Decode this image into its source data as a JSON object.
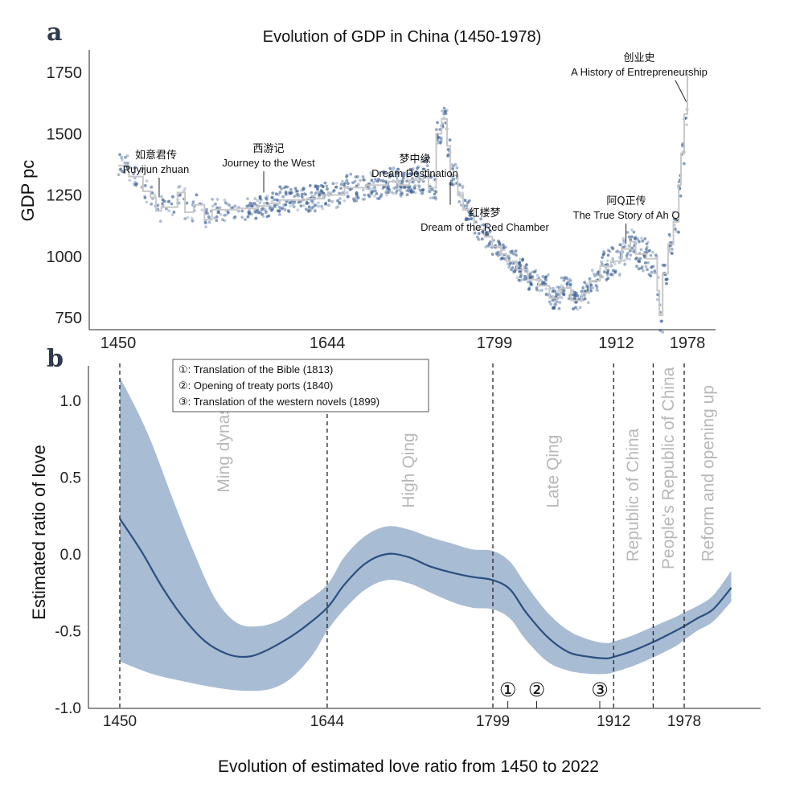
{
  "panel_a_label": "a",
  "panel_b_label": "b",
  "caption": "Evolution of estimated love ratio from 1450 to 2022",
  "colors": {
    "points": "#3a5f93",
    "step": "#c8c8c8",
    "band": "#a8bcd3",
    "line": "#2b4f80",
    "era": "#b8b8b8"
  },
  "chart_data": [
    {
      "type": "scatter",
      "title": "Evolution of GDP in China (1450-1978)",
      "ylabel": "GDP pc",
      "xlabel": "",
      "xlim": [
        1440,
        2005
      ],
      "ylim": [
        710,
        1810
      ],
      "xticks": [
        "1450",
        "1644",
        "1799",
        "1912",
        "1978"
      ],
      "yticks": [
        "750",
        "1000",
        "1250",
        "1500",
        "1750"
      ],
      "step_series": [
        [
          1450,
          1370
        ],
        [
          1460,
          1325
        ],
        [
          1473,
          1265
        ],
        [
          1480,
          1240
        ],
        [
          1485,
          1185
        ],
        [
          1490,
          1200
        ],
        [
          1505,
          1260
        ],
        [
          1512,
          1180
        ],
        [
          1520,
          1210
        ],
        [
          1530,
          1150
        ],
        [
          1537,
          1190
        ],
        [
          1560,
          1195
        ],
        [
          1580,
          1205
        ],
        [
          1590,
          1215
        ],
        [
          1600,
          1230
        ],
        [
          1625,
          1235
        ],
        [
          1640,
          1250
        ],
        [
          1660,
          1280
        ],
        [
          1680,
          1290
        ],
        [
          1700,
          1305
        ],
        [
          1710,
          1290
        ],
        [
          1720,
          1310
        ],
        [
          1733,
          1350
        ],
        [
          1738,
          1280
        ],
        [
          1745,
          1500
        ],
        [
          1750,
          1560
        ],
        [
          1755,
          1450
        ],
        [
          1758,
          1330
        ],
        [
          1765,
          1250
        ],
        [
          1770,
          1190
        ],
        [
          1780,
          1110
        ],
        [
          1790,
          1080
        ],
        [
          1797,
          1040
        ],
        [
          1805,
          1010
        ],
        [
          1810,
          980
        ],
        [
          1820,
          945
        ],
        [
          1830,
          905
        ],
        [
          1840,
          880
        ],
        [
          1850,
          830
        ],
        [
          1860,
          870
        ],
        [
          1870,
          820
        ],
        [
          1880,
          850
        ],
        [
          1887,
          900
        ],
        [
          1897,
          960
        ],
        [
          1907,
          980
        ],
        [
          1917,
          1030
        ],
        [
          1925,
          1060
        ],
        [
          1930,
          1010
        ],
        [
          1940,
          990
        ],
        [
          1950,
          860
        ],
        [
          1952,
          760
        ],
        [
          1955,
          930
        ],
        [
          1960,
          1050
        ],
        [
          1965,
          1140
        ],
        [
          1970,
          1290
        ],
        [
          1972,
          1420
        ],
        [
          1975,
          1580
        ],
        [
          1978,
          1750
        ]
      ],
      "annotations": [
        {
          "cn": "如意君传",
          "en": "Ruyijun zhuan",
          "year": 1488,
          "gdp": 1240
        },
        {
          "cn": "西游记",
          "en": "Journey to the West",
          "year": 1585,
          "gdp": 1260
        },
        {
          "cn": "梦中缘",
          "en": "Dream Destination",
          "year": 1758,
          "gdp": 1210
        },
        {
          "cn": "红楼梦",
          "en": "Dream of the Red Chamber",
          "year": 1791,
          "gdp": 1100
        },
        {
          "cn": "阿Q正传",
          "en": "The True Story of Ah Q",
          "year": 1921,
          "gdp": 1050
        },
        {
          "cn": "创业史",
          "en": "A History of Entrepreneurship",
          "year": 1977,
          "gdp": 1630
        }
      ]
    },
    {
      "type": "line",
      "title": "",
      "ylabel": "Estimated ratio of love",
      "xlabel": "Evolution of estimated love ratio from 1450 to 2022",
      "xlim": [
        1420,
        2040
      ],
      "ylim": [
        -1.0,
        1.35
      ],
      "xticks": [
        "1450",
        "1644",
        "1799",
        "1912",
        "1978"
      ],
      "yticks": [
        "-1.0",
        "-0.5",
        "0.0",
        "0.5",
        "1.0"
      ],
      "mean_series": [
        [
          1450,
          0.23
        ],
        [
          1470,
          0.02
        ],
        [
          1490,
          -0.22
        ],
        [
          1510,
          -0.42
        ],
        [
          1530,
          -0.57
        ],
        [
          1550,
          -0.65
        ],
        [
          1566,
          -0.67
        ],
        [
          1580,
          -0.65
        ],
        [
          1600,
          -0.58
        ],
        [
          1620,
          -0.49
        ],
        [
          1644,
          -0.35
        ],
        [
          1660,
          -0.2
        ],
        [
          1680,
          -0.06
        ],
        [
          1700,
          0.0
        ],
        [
          1720,
          -0.02
        ],
        [
          1740,
          -0.08
        ],
        [
          1760,
          -0.12
        ],
        [
          1780,
          -0.15
        ],
        [
          1799,
          -0.17
        ],
        [
          1815,
          -0.23
        ],
        [
          1830,
          -0.38
        ],
        [
          1850,
          -0.54
        ],
        [
          1870,
          -0.64
        ],
        [
          1890,
          -0.67
        ],
        [
          1905,
          -0.68
        ],
        [
          1912,
          -0.67
        ],
        [
          1930,
          -0.63
        ],
        [
          1950,
          -0.57
        ],
        [
          1970,
          -0.5
        ],
        [
          1978,
          -0.47
        ],
        [
          1990,
          -0.42
        ],
        [
          2005,
          -0.36
        ],
        [
          2022,
          -0.22
        ]
      ],
      "upper_series": [
        [
          1450,
          1.15
        ],
        [
          1465,
          0.95
        ],
        [
          1480,
          0.72
        ],
        [
          1500,
          0.35
        ],
        [
          1520,
          0.0
        ],
        [
          1540,
          -0.3
        ],
        [
          1560,
          -0.45
        ],
        [
          1580,
          -0.47
        ],
        [
          1600,
          -0.43
        ],
        [
          1620,
          -0.33
        ],
        [
          1644,
          -0.2
        ],
        [
          1660,
          -0.02
        ],
        [
          1680,
          0.12
        ],
        [
          1700,
          0.18
        ],
        [
          1720,
          0.16
        ],
        [
          1740,
          0.11
        ],
        [
          1760,
          0.07
        ],
        [
          1780,
          0.03
        ],
        [
          1799,
          0.02
        ],
        [
          1815,
          -0.05
        ],
        [
          1830,
          -0.2
        ],
        [
          1850,
          -0.38
        ],
        [
          1870,
          -0.5
        ],
        [
          1890,
          -0.56
        ],
        [
          1905,
          -0.58
        ],
        [
          1912,
          -0.57
        ],
        [
          1930,
          -0.53
        ],
        [
          1950,
          -0.47
        ],
        [
          1970,
          -0.41
        ],
        [
          1978,
          -0.38
        ],
        [
          1990,
          -0.34
        ],
        [
          2005,
          -0.27
        ],
        [
          2022,
          -0.11
        ]
      ],
      "lower_series": [
        [
          1450,
          -0.7
        ],
        [
          1480,
          -0.78
        ],
        [
          1510,
          -0.83
        ],
        [
          1540,
          -0.87
        ],
        [
          1566,
          -0.89
        ],
        [
          1590,
          -0.88
        ],
        [
          1610,
          -0.81
        ],
        [
          1630,
          -0.66
        ],
        [
          1644,
          -0.5
        ],
        [
          1660,
          -0.36
        ],
        [
          1680,
          -0.23
        ],
        [
          1700,
          -0.17
        ],
        [
          1720,
          -0.19
        ],
        [
          1740,
          -0.25
        ],
        [
          1760,
          -0.31
        ],
        [
          1780,
          -0.35
        ],
        [
          1799,
          -0.36
        ],
        [
          1815,
          -0.42
        ],
        [
          1830,
          -0.56
        ],
        [
          1850,
          -0.7
        ],
        [
          1870,
          -0.76
        ],
        [
          1890,
          -0.78
        ],
        [
          1905,
          -0.78
        ],
        [
          1912,
          -0.77
        ],
        [
          1930,
          -0.73
        ],
        [
          1950,
          -0.67
        ],
        [
          1970,
          -0.6
        ],
        [
          1978,
          -0.56
        ],
        [
          1990,
          -0.5
        ],
        [
          2005,
          -0.44
        ],
        [
          2022,
          -0.31
        ]
      ],
      "vlines": [
        1450,
        1644,
        1799,
        1912,
        1949,
        1978
      ],
      "eras": [
        {
          "label": "Ming dynasty",
          "year": 1547,
          "value": 0.4
        },
        {
          "label": "High Qing",
          "year": 1720,
          "value": 0.3
        },
        {
          "label": "Late Qing",
          "year": 1855,
          "value": 0.3
        },
        {
          "label": "Republic of China",
          "year": 1930,
          "value": -0.05
        },
        {
          "label": "People's Republic of China",
          "year": 1963,
          "value": -0.1
        },
        {
          "label": "Reform and opening up",
          "year": 2000,
          "value": -0.05
        }
      ],
      "events": [
        {
          "marker": "①",
          "year": 1813
        },
        {
          "marker": "②",
          "year": 1840
        },
        {
          "marker": "③",
          "year": 1899
        }
      ],
      "legend": [
        "①: Translation of the Bible (1813)",
        "②: Opening of treaty ports (1840)",
        "③: Translation of the western novels (1899)"
      ]
    }
  ]
}
